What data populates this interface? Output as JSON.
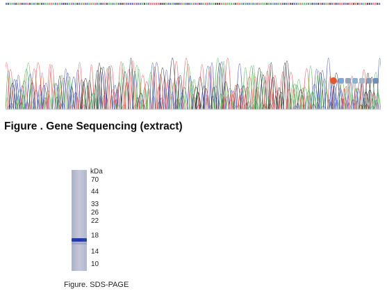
{
  "figure1": {
    "caption": "Figure . Gene Sequencing (extract)",
    "trace_colors": {
      "A": "#4caf50",
      "C": "#3f51b5",
      "G": "#222222",
      "T": "#e05050"
    }
  },
  "figure2": {
    "caption": "Figure. SDS-PAGE",
    "unit_label": "kDa",
    "markers": [
      "70",
      "44",
      "33",
      "26",
      "22",
      "18",
      "14",
      "10"
    ],
    "band_color": "#2340a8"
  },
  "toolbar_icons": [
    "logo-icon",
    "share-icon",
    "edit-icon",
    "link-icon",
    "image-icon",
    "print-icon",
    "settings-icon"
  ]
}
